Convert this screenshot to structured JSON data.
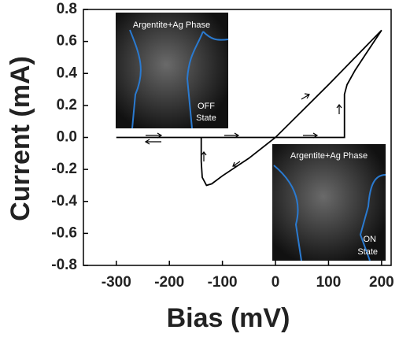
{
  "chart_data": {
    "type": "line",
    "xlabel": "Bias (mV)",
    "ylabel": "Current (mA)",
    "xlim": [
      -362,
      218
    ],
    "xticks": [
      -300,
      -200,
      -100,
      0,
      100,
      200
    ],
    "ylim": [
      -0.8,
      0.8
    ],
    "yticks": [
      0.8,
      0.6,
      0.4,
      0.2,
      {
        "value": 0,
        "label": "0.0"
      },
      -0.2,
      -0.4,
      -0.6,
      -0.8
    ],
    "series": [
      {
        "color": "#000000",
        "x": [
          -300,
          130,
          130,
          135,
          150,
          170,
          200,
          100,
          0,
          -50,
          -100,
          -120,
          -130,
          -138,
          -140,
          -140,
          -300
        ],
        "values": [
          0,
          0,
          0.27,
          0.33,
          0.42,
          0.52,
          0.67,
          0.33,
          0,
          -0.13,
          -0.24,
          -0.29,
          -0.3,
          -0.25,
          -0.15,
          0,
          0
        ]
      }
    ],
    "annotations": [
      "Argentite+Ag Phase",
      "OFF",
      "State",
      "Argentite+Ag Phase",
      "ON",
      "State"
    ]
  }
}
